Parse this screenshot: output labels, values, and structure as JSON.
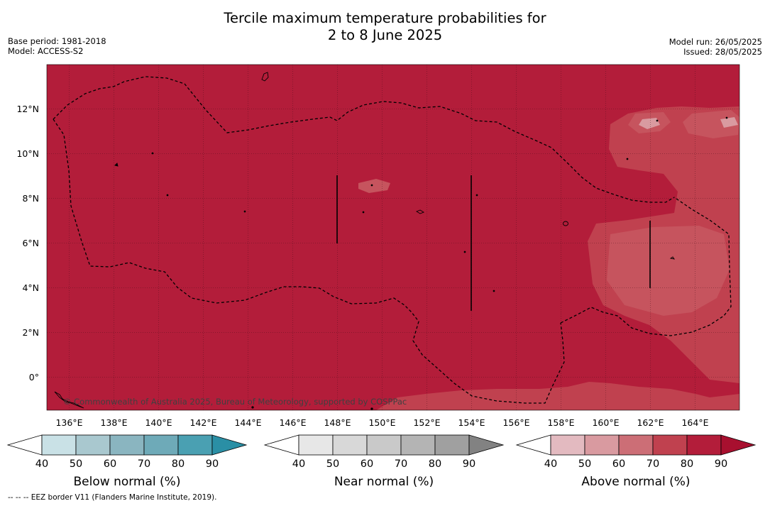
{
  "title_line1": "Tercile maximum temperature probabilities for",
  "title_line2": "2 to 8 June 2025",
  "base_period": "Base period: 1981-2018",
  "model": "Model: ACCESS-S2",
  "model_run": "Model run: 26/05/2025",
  "issued": "Issued: 28/05/2025",
  "copyright": "© Commonwealth of Australia 2025, Bureau of Meteorology, supported by COSPPac",
  "footer": "--  --  -- EEZ border V11 (Flanders Marine Institute, 2019).",
  "map": {
    "lon_range": [
      134.9,
      165.9
    ],
    "lat_range": [
      -1.5,
      13.95
    ],
    "lon_ticks": [
      136,
      138,
      140,
      142,
      144,
      146,
      148,
      150,
      152,
      154,
      156,
      158,
      160,
      162,
      164
    ],
    "lat_ticks": [
      0,
      2,
      4,
      6,
      8,
      10,
      12
    ],
    "lon_tick_labels": [
      "136°E",
      "138°E",
      "140°E",
      "142°E",
      "144°E",
      "146°E",
      "148°E",
      "150°E",
      "152°E",
      "154°E",
      "156°E",
      "158°E",
      "160°E",
      "162°E",
      "164°E"
    ],
    "lat_tick_labels": [
      "0°",
      "2°N",
      "4°N",
      "6°N",
      "8°N",
      "10°N",
      "12°N"
    ],
    "background_category": "Above normal 80-90%",
    "colors": {
      "above_80": "#b31d3a",
      "above_70": "#c0414f",
      "above_60": "#cc6e76",
      "above_50": "#d99aa0",
      "above_40": "#e3bac0"
    }
  },
  "colorbars": [
    {
      "title": "Below normal (%)",
      "labels": [
        "40",
        "50",
        "60",
        "70",
        "80",
        "90"
      ],
      "colors": [
        "#ffffff",
        "#c9e1e6",
        "#a9c8cf",
        "#8ab5c0",
        "#6eaab8",
        "#4aa0b2",
        "#2a8fa5"
      ]
    },
    {
      "title": "Near normal (%)",
      "labels": [
        "40",
        "50",
        "60",
        "70",
        "80",
        "90"
      ],
      "colors": [
        "#ffffff",
        "#e7e7e7",
        "#d8d8d8",
        "#c9c9c9",
        "#b4b4b4",
        "#a0a0a0",
        "#828282"
      ]
    },
    {
      "title": "Above normal (%)",
      "labels": [
        "40",
        "50",
        "60",
        "70",
        "80",
        "90"
      ],
      "colors": [
        "#ffffff",
        "#e3bac0",
        "#d99aa0",
        "#cc6e76",
        "#c0414f",
        "#b31d3a",
        "#a8102f"
      ]
    }
  ]
}
